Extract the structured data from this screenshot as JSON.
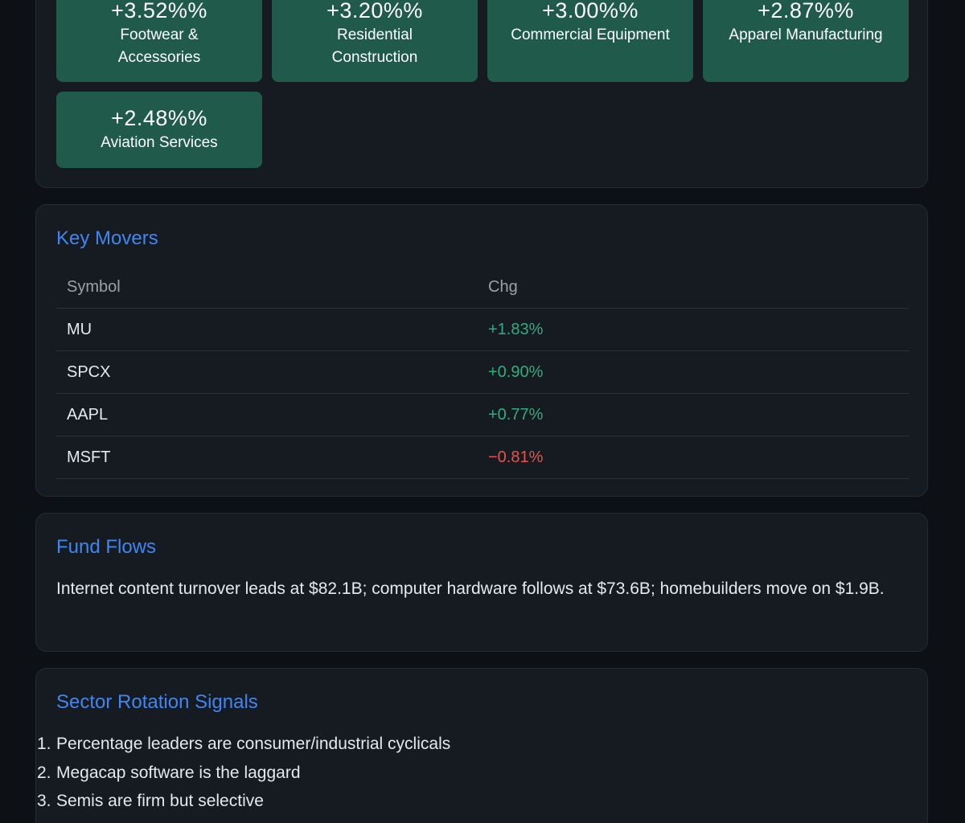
{
  "sectors": {
    "tiles": [
      {
        "pct": "+3.52%%",
        "name": "Footwear & Accessories"
      },
      {
        "pct": "+3.20%%",
        "name": "Residential Construction"
      },
      {
        "pct": "+3.00%%",
        "name": "Commercial Equipment"
      },
      {
        "pct": "+2.87%%",
        "name": "Apparel Manufacturing"
      },
      {
        "pct": "+2.48%%",
        "name": "Aviation Services"
      }
    ]
  },
  "movers": {
    "title": "Key Movers",
    "columns": {
      "symbol": "Symbol",
      "change": "Chg"
    },
    "rows": [
      {
        "symbol": "MU",
        "change": "+1.83%",
        "direction": "up"
      },
      {
        "symbol": "SPCX",
        "change": "+0.90%",
        "direction": "up"
      },
      {
        "symbol": "AAPL",
        "change": "+0.77%",
        "direction": "up"
      },
      {
        "symbol": "MSFT",
        "change": "−0.81%",
        "direction": "down"
      }
    ]
  },
  "flows": {
    "title": "Fund Flows",
    "text": "Internet content turnover leads at $82.1B; computer hardware follows at $73.6B; homebuilders move on $1.9B."
  },
  "rotation": {
    "title": "Sector Rotation Signals",
    "items": [
      {
        "num": "1.",
        "text": "Percentage leaders are consumer/industrial cyclicals"
      },
      {
        "num": "2.",
        "text": "Megacap software is the laggard"
      },
      {
        "num": "3.",
        "text": "Semis are firm but selective"
      }
    ]
  },
  "colors": {
    "positive": "#2fae7d",
    "negative": "#e5534b",
    "accent": "#3f86f0",
    "tile": "#1f5a4a"
  }
}
